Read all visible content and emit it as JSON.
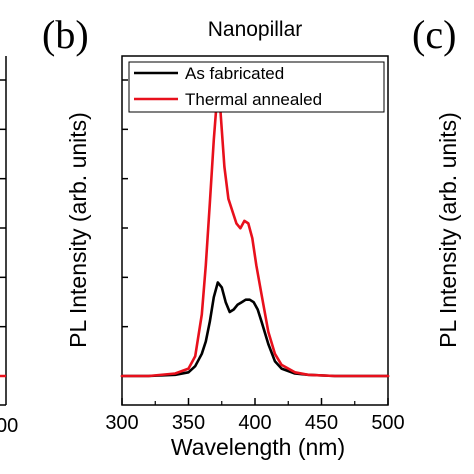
{
  "chart_data": {
    "type": "line",
    "panel_labels": {
      "left_axis_tick": "00",
      "b": "(b)",
      "c": "(c)"
    },
    "title": "Nanopillar",
    "xlabel": "Wavelength (nm)",
    "ylabel": "PL Intensity (arb. units)",
    "right_ylabel": "PL Intensity (arb. units)",
    "xlim": [
      300,
      500
    ],
    "ylim": [
      0,
      1.3
    ],
    "x_ticks": [
      300,
      350,
      400,
      450,
      500
    ],
    "y_tick_count": 7,
    "legend": {
      "placement": "top-left"
    },
    "series": [
      {
        "name": "As fabricated",
        "color": "#000000",
        "x": [
          300,
          320,
          340,
          350,
          355,
          360,
          363,
          366,
          369,
          372,
          375,
          378,
          381,
          384,
          387,
          390,
          393,
          396,
          399,
          402,
          405,
          410,
          415,
          420,
          430,
          440,
          460,
          480,
          500
        ],
        "y": [
          0.0,
          0.0,
          0.005,
          0.015,
          0.04,
          0.09,
          0.14,
          0.22,
          0.32,
          0.38,
          0.36,
          0.3,
          0.26,
          0.27,
          0.29,
          0.3,
          0.31,
          0.31,
          0.3,
          0.27,
          0.22,
          0.13,
          0.06,
          0.03,
          0.01,
          0.005,
          0.0,
          0.0,
          0.0
        ]
      },
      {
        "name": "Thermal annealed",
        "color": "#e8101c",
        "x": [
          300,
          320,
          340,
          350,
          355,
          360,
          363,
          366,
          369,
          372,
          374,
          377,
          380,
          383,
          386,
          389,
          392,
          395,
          398,
          401,
          405,
          410,
          415,
          420,
          430,
          440,
          460,
          480,
          500
        ],
        "y": [
          0.0,
          0.0,
          0.01,
          0.03,
          0.08,
          0.25,
          0.45,
          0.7,
          0.96,
          1.17,
          1.08,
          0.85,
          0.72,
          0.67,
          0.62,
          0.6,
          0.63,
          0.62,
          0.56,
          0.45,
          0.33,
          0.18,
          0.09,
          0.045,
          0.015,
          0.005,
          0.0,
          0.0,
          0.0
        ]
      }
    ]
  }
}
